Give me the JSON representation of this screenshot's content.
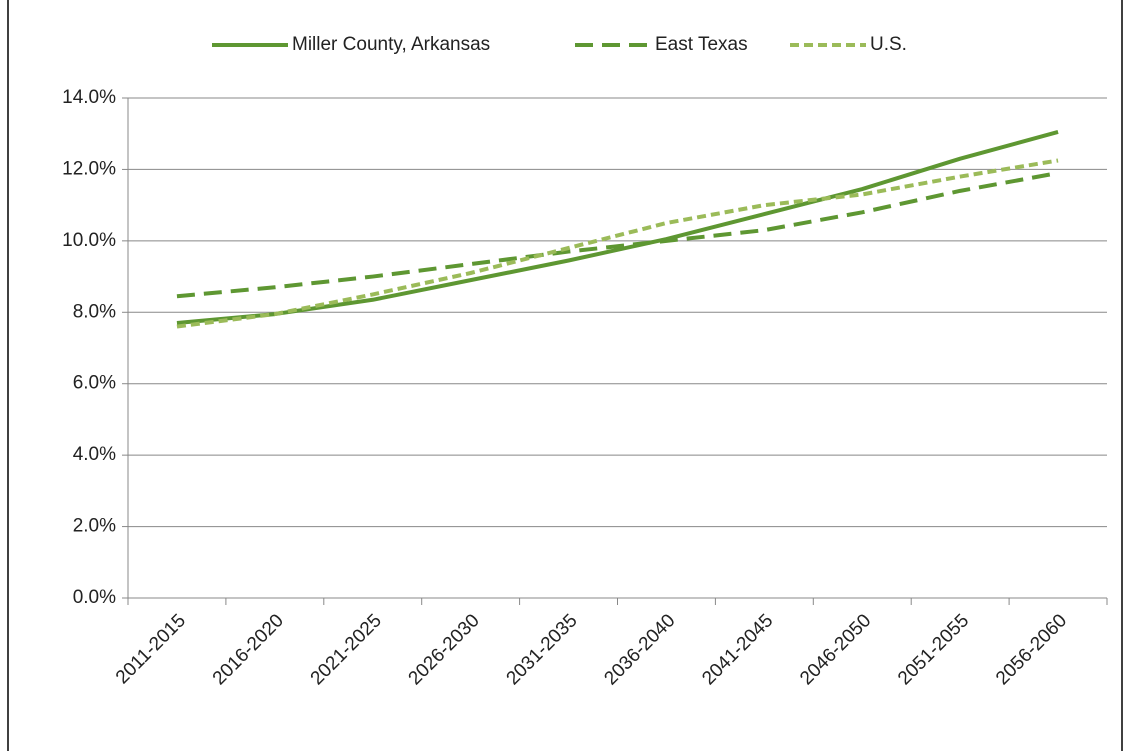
{
  "chart_data": {
    "type": "line",
    "categories": [
      "2011-2015",
      "2016-2020",
      "2021-2025",
      "2026-2030",
      "2031-2035",
      "2036-2040",
      "2041-2045",
      "2046-2050",
      "2051-2055",
      "2056-2060"
    ],
    "series": [
      {
        "name": "Miller County, Arkansas",
        "color": "#5e9732",
        "line_style": "solid",
        "values": [
          7.7,
          7.95,
          8.35,
          8.9,
          9.45,
          10.05,
          10.75,
          11.45,
          12.3,
          13.05
        ]
      },
      {
        "name": "East Texas",
        "color": "#5e9732",
        "line_style": "dashed",
        "values": [
          8.45,
          8.7,
          9.0,
          9.35,
          9.7,
          10.0,
          10.3,
          10.8,
          11.4,
          11.9
        ]
      },
      {
        "name": "U.S.",
        "color": "#9bbb59",
        "line_style": "dotted",
        "values": [
          7.6,
          7.95,
          8.5,
          9.1,
          9.8,
          10.5,
          11.0,
          11.3,
          11.8,
          12.25
        ]
      }
    ],
    "ylim": [
      0,
      14
    ],
    "yticks": [
      {
        "value": 0,
        "label": "0.0%"
      },
      {
        "value": 2,
        "label": "2.0%"
      },
      {
        "value": 4,
        "label": "4.0%"
      },
      {
        "value": 6,
        "label": "6.0%"
      },
      {
        "value": 8,
        "label": "8.0%"
      },
      {
        "value": 10,
        "label": "10.0%"
      },
      {
        "value": 12,
        "label": "12.0%"
      },
      {
        "value": 14,
        "label": "14.0%"
      }
    ],
    "grid": true,
    "legend": "top"
  }
}
